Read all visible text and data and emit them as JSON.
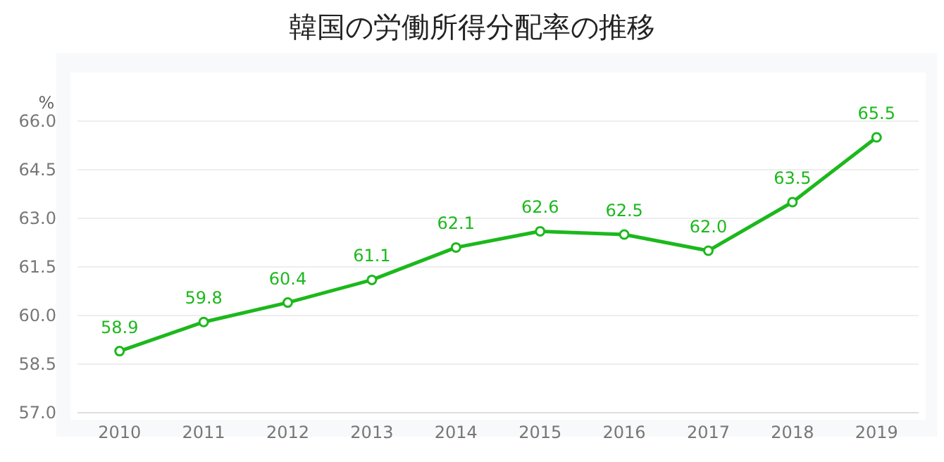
{
  "chart_data": {
    "type": "line",
    "title": "韓国の労働所得分配率の推移",
    "ylabel": "%",
    "categories": [
      "2010",
      "2011",
      "2012",
      "2013",
      "2014",
      "2015",
      "2016",
      "2017",
      "2018",
      "2019"
    ],
    "series": [
      {
        "color": "#1cb81c",
        "values": [
          58.9,
          59.8,
          60.4,
          61.1,
          62.1,
          62.6,
          62.5,
          62.0,
          63.5,
          65.5
        ],
        "value_labels": [
          "58.9",
          "59.8",
          "60.4",
          "61.1",
          "62.1",
          "62.6",
          "62.5",
          "62.0",
          "63.5",
          "65.5"
        ]
      }
    ],
    "ylim": [
      57,
      67.5
    ],
    "yticks": [
      {
        "value": 57,
        "label": "57.0"
      },
      {
        "value": 58.5,
        "label": "58.5"
      },
      {
        "value": 60,
        "label": "60.0"
      },
      {
        "value": 61.5,
        "label": "61.5"
      },
      {
        "value": 63,
        "label": "63.0"
      },
      {
        "value": 64.5,
        "label": "64.5"
      },
      {
        "value": 66,
        "label": "66.0"
      }
    ],
    "grid": "y",
    "marker": "circle",
    "line_style": "solid"
  }
}
